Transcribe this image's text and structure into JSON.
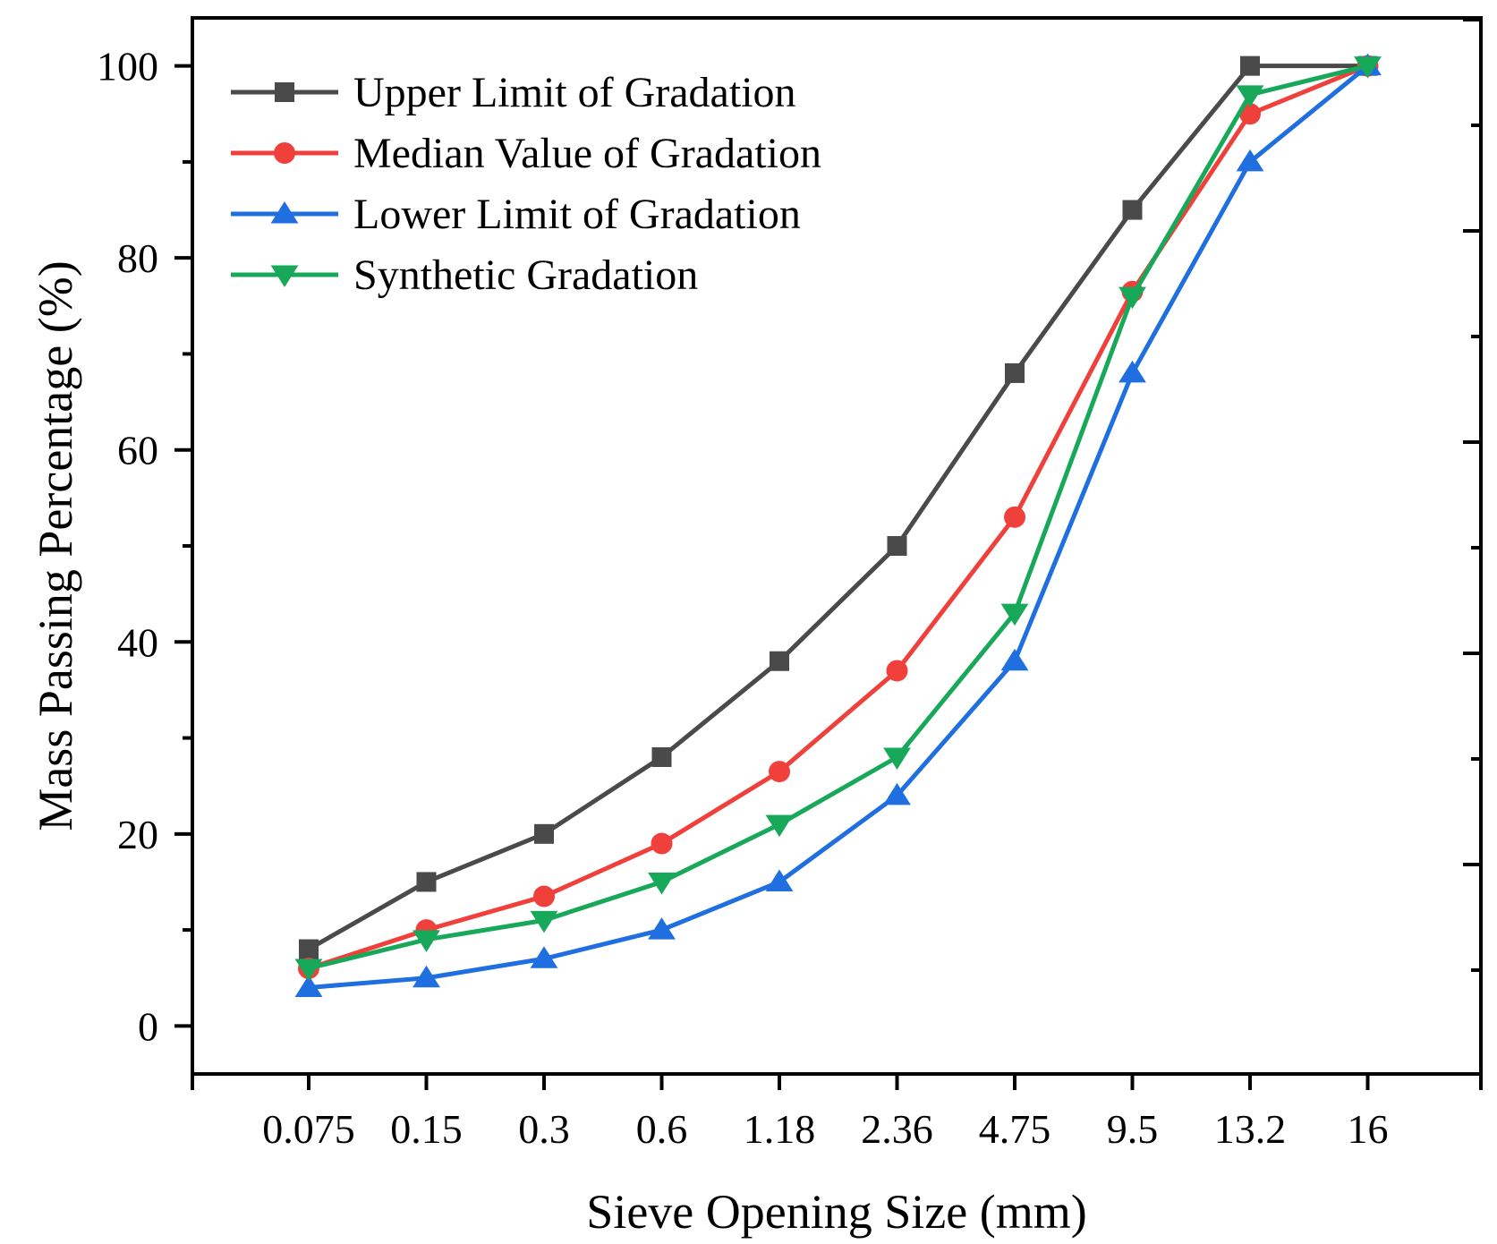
{
  "chart_data": {
    "type": "line",
    "title": "",
    "xlabel": "Sieve Opening Size (mm)",
    "ylabel": "Mass Passing Percentage (%)",
    "categories": [
      "0.075",
      "0.15",
      "0.3",
      "0.6",
      "1.18",
      "2.36",
      "4.75",
      "9.5",
      "13.2",
      "16"
    ],
    "ylim": [
      -5,
      105
    ],
    "yticks": [
      "0",
      "20",
      "40",
      "60",
      "80",
      "100"
    ],
    "ytick_values": [
      0,
      20,
      40,
      60,
      80,
      100
    ],
    "grid": false,
    "legend_position": "top-left",
    "series": [
      {
        "name": "Upper Limit of Gradation",
        "color": "#4a4a4a",
        "marker": "square",
        "values": [
          8,
          15,
          20,
          28,
          38,
          50,
          68,
          85,
          100,
          100
        ]
      },
      {
        "name": "Median Value of Gradation",
        "color": "#f0403c",
        "marker": "circle",
        "values": [
          6,
          10,
          13.5,
          19,
          26.5,
          37,
          53,
          76.5,
          95,
          100
        ]
      },
      {
        "name": "Lower Limit of Gradation",
        "color": "#1f6fe0",
        "marker": "triangle-up",
        "values": [
          4,
          5,
          7,
          10,
          15,
          24,
          38,
          68,
          90,
          100
        ]
      },
      {
        "name": "Synthetic Gradation",
        "color": "#17a85a",
        "marker": "triangle-down",
        "values": [
          6,
          9,
          11,
          15,
          21,
          28,
          43,
          76,
          97,
          100
        ]
      }
    ]
  }
}
